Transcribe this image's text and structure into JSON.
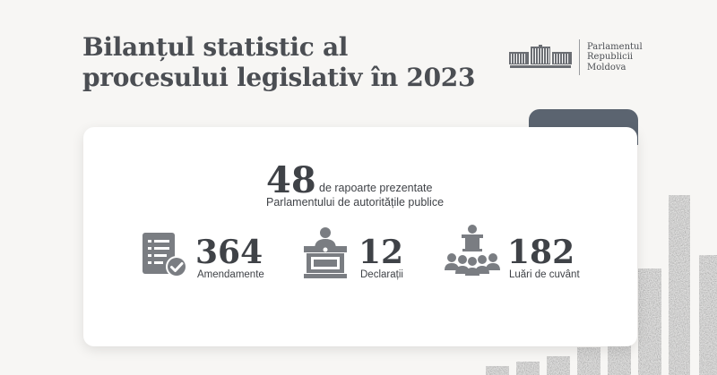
{
  "title": {
    "line1": "Bilanțul statistic al",
    "line2": "procesului legislativ în 2023"
  },
  "logo": {
    "line1": "Parlamentul",
    "line2": "Republicii",
    "line3": "Moldova"
  },
  "headline": {
    "value": "48",
    "text_line1": "de rapoarte prezentate",
    "text_line2": "Parlamentului de autoritățile publice"
  },
  "stats": [
    {
      "value": "364",
      "label": "Amendamente",
      "icon": "document-check-icon"
    },
    {
      "value": "12",
      "label": "Declarații",
      "icon": "speaker-podium-icon"
    },
    {
      "value": "182",
      "label": "Luări de cuvânt",
      "icon": "audience-icon"
    }
  ],
  "colors": {
    "text": "#3f4247",
    "icon": "#7a7d82",
    "accent": "#5b6470",
    "background": "#f7f6f4"
  }
}
